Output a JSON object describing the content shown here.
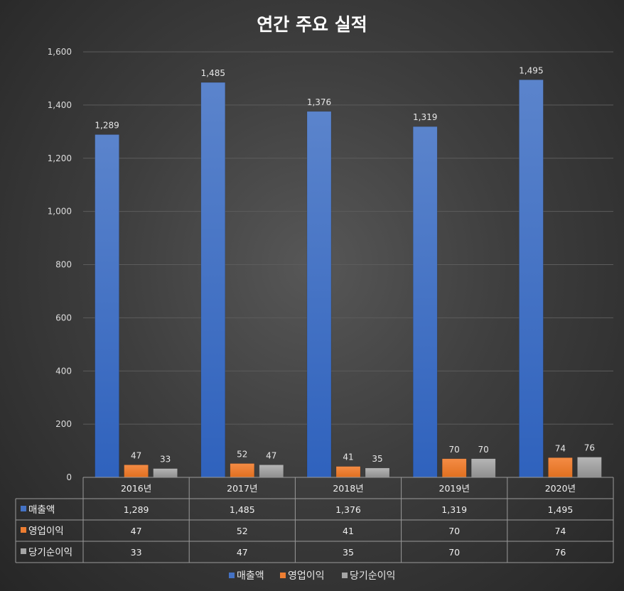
{
  "chart_data": {
    "type": "bar",
    "title": "연간 주요 실적",
    "categories": [
      "2016년",
      "2017년",
      "2018년",
      "2019년",
      "2020년"
    ],
    "series": [
      {
        "name": "매출액",
        "values": [
          1289,
          1485,
          1376,
          1319,
          1495
        ],
        "labels": [
          "1,289",
          "1,485",
          "1,376",
          "1,319",
          "1,495"
        ],
        "color": "#4472c4"
      },
      {
        "name": "영업이익",
        "values": [
          47,
          52,
          41,
          70,
          74
        ],
        "labels": [
          "47",
          "52",
          "41",
          "70",
          "74"
        ],
        "color": "#ed7d31"
      },
      {
        "name": "당기순이익",
        "values": [
          33,
          47,
          35,
          70,
          76
        ],
        "labels": [
          "33",
          "47",
          "35",
          "70",
          "76"
        ],
        "color": "#a5a5a5"
      }
    ],
    "y_ticks": [
      "0",
      "200",
      "400",
      "600",
      "800",
      "1,000",
      "1,200",
      "1,400",
      "1,600"
    ],
    "ylim": [
      0,
      1600
    ],
    "grid": true,
    "legend": "bottom",
    "data_table": true
  }
}
